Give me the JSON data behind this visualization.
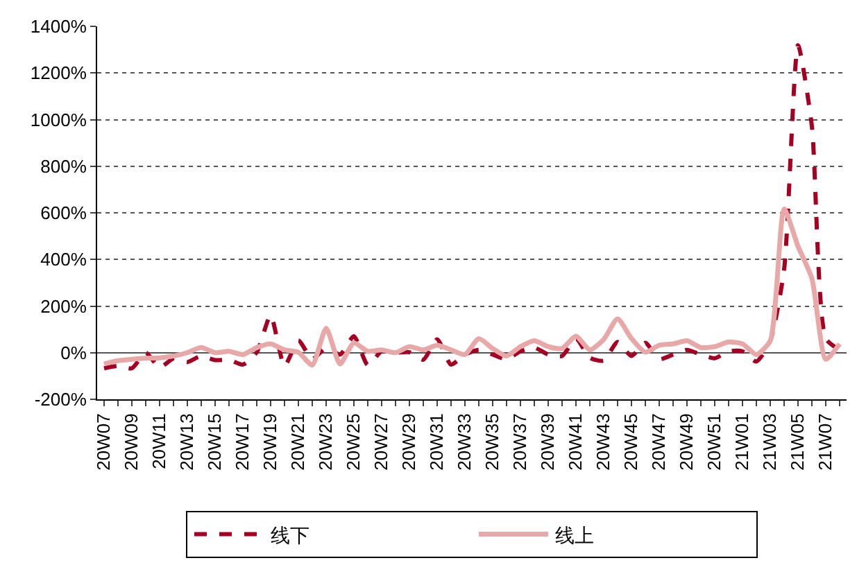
{
  "chart_data": {
    "type": "line",
    "categories": [
      "20W07",
      null,
      "20W09",
      null,
      "20W11",
      null,
      "20W13",
      null,
      "20W15",
      null,
      "20W17",
      null,
      "20W19",
      null,
      "20W21",
      null,
      "20W23",
      null,
      "20W25",
      null,
      "20W27",
      null,
      "20W29",
      null,
      "20W31",
      null,
      "20W33",
      null,
      "20W35",
      null,
      "20W37",
      null,
      "20W39",
      null,
      "20W41",
      null,
      "20W43",
      null,
      "20W45",
      null,
      "20W47",
      null,
      "20W49",
      null,
      "20W51",
      null,
      "21W01",
      null,
      "21W03",
      null,
      "21W05",
      null,
      "21W07",
      null
    ],
    "series": [
      {
        "name": "线下",
        "color": "#a50021",
        "line_style": "dashed",
        "values": [
          -67,
          -57,
          -67,
          0,
          -63,
          -25,
          -40,
          -14,
          -32,
          -30,
          -51,
          2,
          160,
          -57,
          52,
          -28,
          22,
          -8,
          71,
          -53,
          6,
          0,
          2,
          -30,
          57,
          -51,
          -8,
          12,
          -8,
          -28,
          6,
          22,
          -8,
          -14,
          61,
          -22,
          -34,
          46,
          -14,
          42,
          -28,
          -8,
          12,
          -8,
          -24,
          6,
          6,
          -38,
          51,
          358,
          1319,
          972,
          61,
          12
        ]
      },
      {
        "name": "线上",
        "color": "#e8a8a8",
        "line_style": "solid",
        "values": [
          -48,
          -34,
          -28,
          -24,
          -22,
          -14,
          0,
          22,
          0,
          6,
          -8,
          22,
          38,
          12,
          2,
          -53,
          105,
          -48,
          42,
          6,
          12,
          0,
          26,
          12,
          32,
          12,
          -8,
          60,
          18,
          -14,
          26,
          51,
          26,
          18,
          71,
          12,
          57,
          145,
          61,
          2,
          32,
          38,
          51,
          22,
          26,
          46,
          38,
          -8,
          51,
          616,
          457,
          319,
          -28,
          38
        ]
      }
    ],
    "ylim": [
      -200,
      1400
    ],
    "yticks": [
      {
        "value": -200,
        "label": "-200%"
      },
      {
        "value": 0,
        "label": "0%"
      },
      {
        "value": 200,
        "label": "200%"
      },
      {
        "value": 400,
        "label": "400%"
      },
      {
        "value": 600,
        "label": "600%"
      },
      {
        "value": 800,
        "label": "800%"
      },
      {
        "value": 1000,
        "label": "1000%"
      },
      {
        "value": 1200,
        "label": "1200%"
      },
      {
        "value": 1400,
        "label": "1400%"
      }
    ],
    "grid": "y",
    "legend": "bottom",
    "marker": "none"
  }
}
